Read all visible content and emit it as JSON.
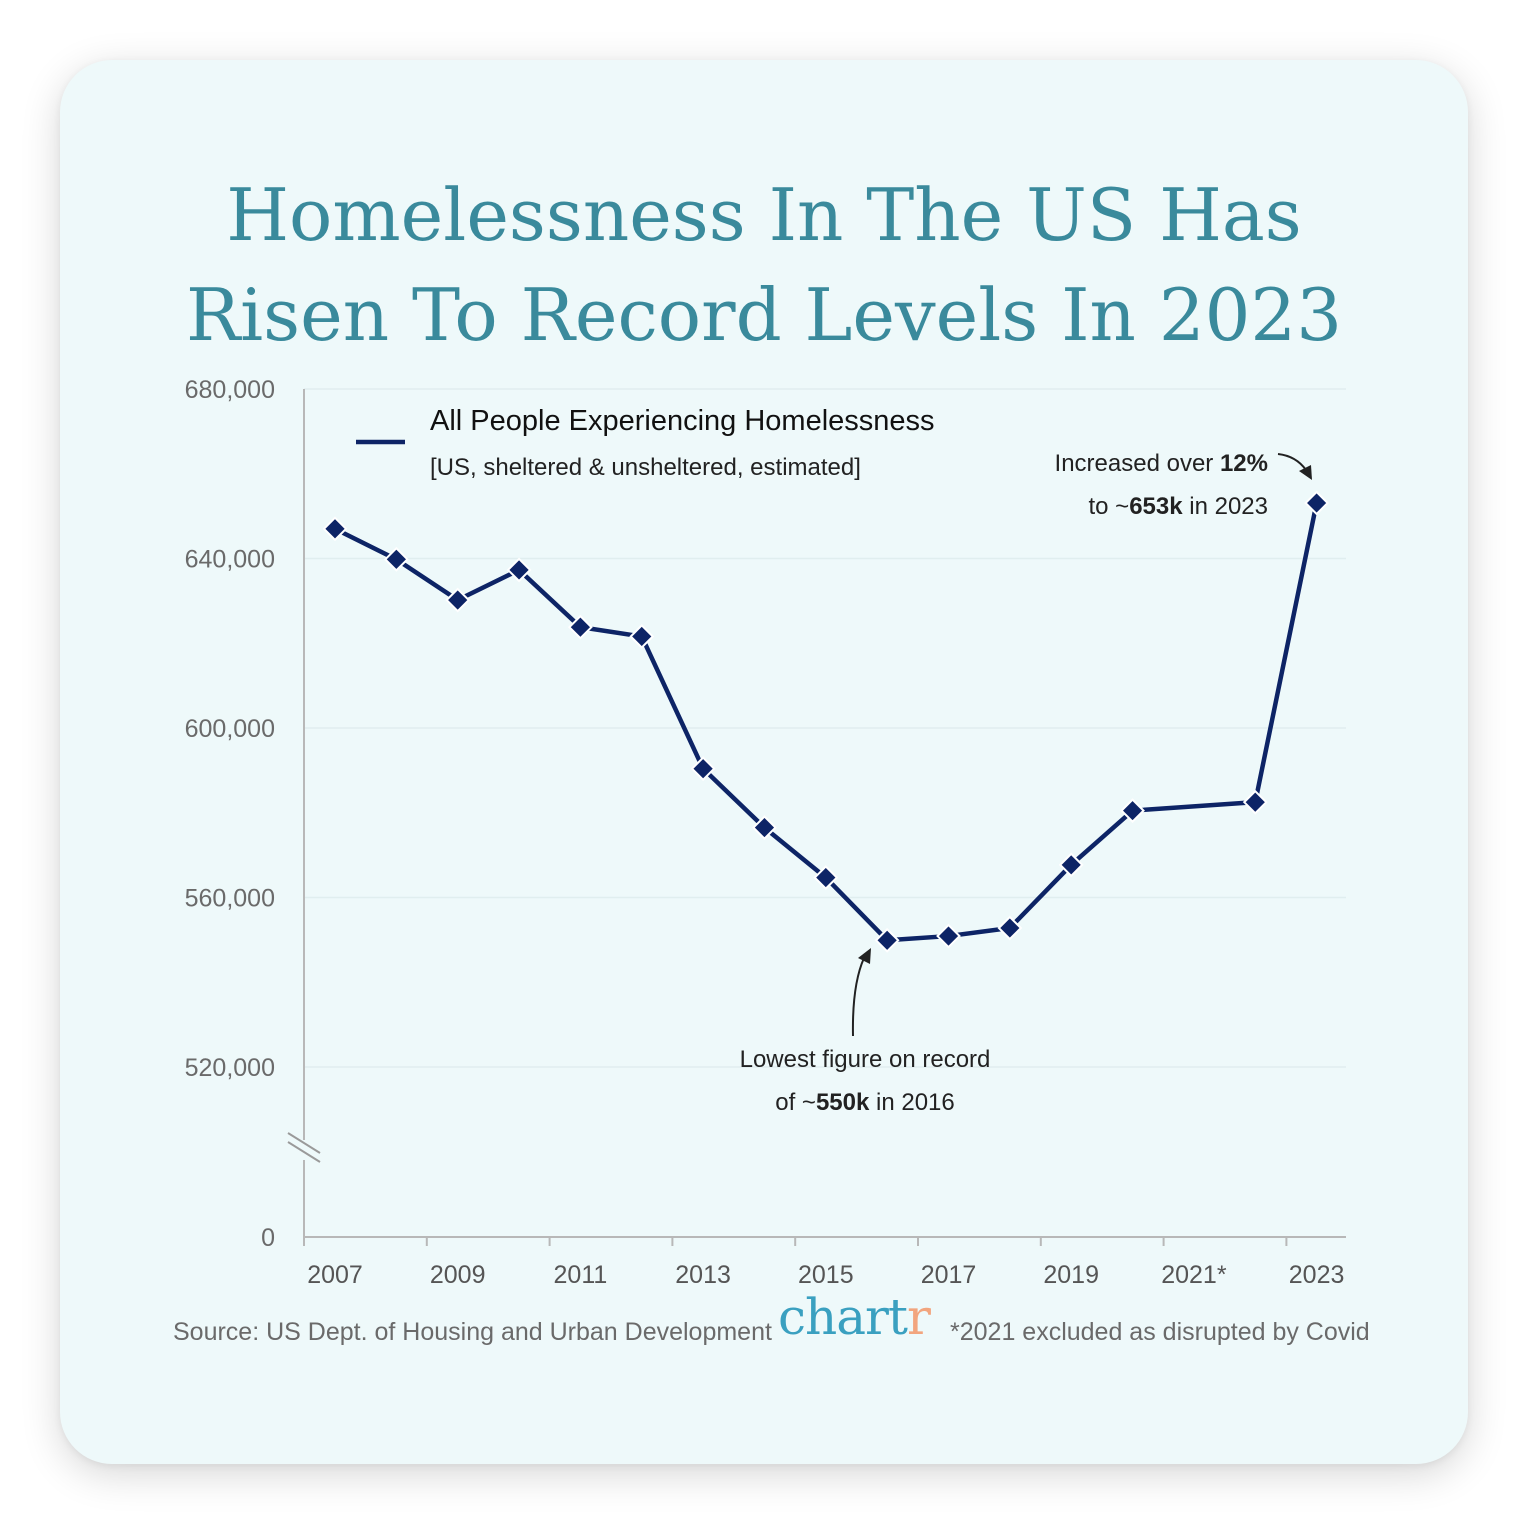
{
  "title_lines": [
    "Homelessness In The US Has",
    "Risen To Record Levels In 2023"
  ],
  "source": "Source: US Dept. of Housing and Urban Development",
  "logo": {
    "main": "chart",
    "accent": "r"
  },
  "footnote": "*2021 excluded as disrupted by Covid",
  "colors": {
    "title": "#3a8a9c",
    "line": "#0d2466",
    "logo": "#3aa0c0",
    "logo_accent": "#f2a57e",
    "background": "#eef9fa"
  },
  "chart_data": {
    "type": "line",
    "y_tick_labels": [
      "680,000",
      "640,000",
      "600,000",
      "560,000",
      "520,000",
      "0"
    ],
    "y_ticks": [
      680000,
      640000,
      600000,
      560000,
      520000,
      0
    ],
    "ylim": [
      510000,
      680000
    ],
    "y_axis_break": true,
    "x_tick_labels": [
      "2007",
      "2009",
      "2011",
      "2013",
      "2015",
      "2017",
      "2019",
      "2021*",
      "2023"
    ],
    "legend": {
      "title": "All People Experiencing Homelessness",
      "subtitle": "[US, sheltered & unsheltered, estimated]",
      "placement": "top-left"
    },
    "series": [
      {
        "name": "All People Experiencing Homelessness",
        "x": [
          "2007",
          "2008",
          "2009",
          "2010",
          "2011",
          "2012",
          "2013",
          "2014",
          "2015",
          "2016",
          "2017",
          "2018",
          "2019",
          "2020",
          "2022",
          "2023"
        ],
        "values": [
          647000,
          639800,
          630200,
          637300,
          623800,
          621600,
          590400,
          576500,
          564700,
          549900,
          550900,
          552800,
          567700,
          580500,
          582500,
          653100
        ]
      }
    ],
    "annotations": [
      {
        "line1_plain": "Increased over ",
        "line1_bold": "12%",
        "line2_plain": "to ~",
        "line2_bold": "653k",
        "line2_tail": " in 2023",
        "target_x": "2023"
      },
      {
        "line1_plain": "Lowest figure on record",
        "line2_plain": "of ~",
        "line2_bold": "550k",
        "line2_tail": " in 2016",
        "target_x": "2016"
      }
    ]
  }
}
